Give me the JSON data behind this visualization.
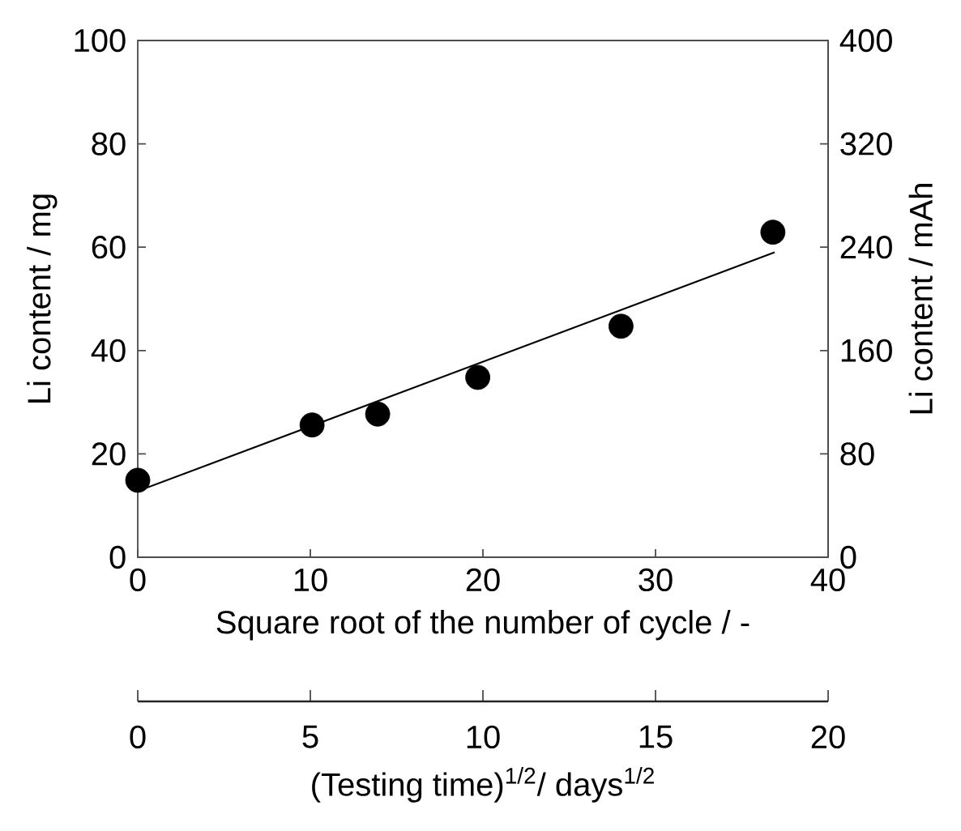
{
  "chart_data": {
    "type": "scatter",
    "xlabel": "Square root of the number of cycle / -",
    "ylabel": "Li content / mg",
    "y2label": "Li content / mAh",
    "x2label": "(Testing time)$^{1/2}$/ days$^{1/2}$",
    "xlim": [
      0,
      40
    ],
    "xticks": [
      0,
      10,
      20,
      30,
      40
    ],
    "ylim": [
      0,
      100
    ],
    "yticks": [
      0,
      20,
      40,
      60,
      80,
      100
    ],
    "y2lim": [
      0,
      400
    ],
    "y2ticks": [
      0,
      80,
      160,
      240,
      320,
      400
    ],
    "x2lim": [
      0,
      20
    ],
    "x2ticks": [
      0,
      5,
      10,
      15,
      20
    ],
    "series": [
      {
        "color": "#000000",
        "marker": "circle",
        "x": [
          0,
          10.1,
          13.9,
          19.7,
          28.0,
          36.8
        ],
        "values": [
          14.9,
          25.6,
          27.7,
          34.8,
          44.7,
          62.9
        ]
      },
      {
        "type": "line",
        "color": "#000000",
        "marker": "none",
        "line_style": "solid",
        "x": [
          0,
          36.9
        ],
        "values": [
          12.8,
          59.0
        ]
      }
    ]
  }
}
